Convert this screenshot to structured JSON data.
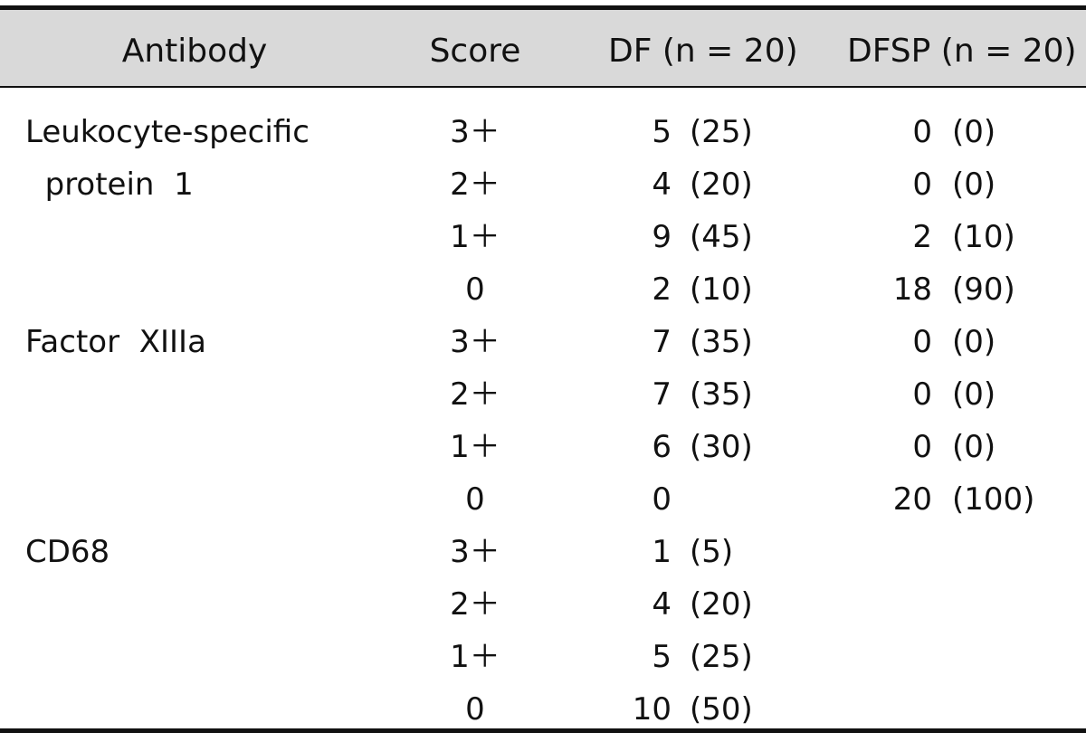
{
  "table": {
    "headers": {
      "antibody": "Antibody",
      "score": "Score",
      "df": "DF  (n = 20)",
      "dfsp": "DFSP  (n = 20)"
    },
    "rows": [
      {
        "antibody": "Leukocyte-specific",
        "score": "3＋",
        "df_n": "5",
        "df_p": "(25)",
        "dfsp_n": "0",
        "dfsp_p": "(0)"
      },
      {
        "antibody": "  protein  1",
        "score": "2＋",
        "df_n": "4",
        "df_p": "(20)",
        "dfsp_n": "0",
        "dfsp_p": "(0)"
      },
      {
        "antibody": "",
        "score": "1＋",
        "df_n": "9",
        "df_p": "(45)",
        "dfsp_n": "2",
        "dfsp_p": "(10)"
      },
      {
        "antibody": "",
        "score": "0",
        "df_n": "2",
        "df_p": "(10)",
        "dfsp_n": "18",
        "dfsp_p": "(90)"
      },
      {
        "antibody": "Factor  XIIIa",
        "score": "3＋",
        "df_n": "7",
        "df_p": "(35)",
        "dfsp_n": "0",
        "dfsp_p": "(0)"
      },
      {
        "antibody": "",
        "score": "2＋",
        "df_n": "7",
        "df_p": "(35)",
        "dfsp_n": "0",
        "dfsp_p": "(0)"
      },
      {
        "antibody": "",
        "score": "1＋",
        "df_n": "6",
        "df_p": "(30)",
        "dfsp_n": "0",
        "dfsp_p": "(0)"
      },
      {
        "antibody": "",
        "score": "0",
        "df_n": "0",
        "df_p": "",
        "dfsp_n": "20",
        "dfsp_p": "(100)"
      },
      {
        "antibody": "CD68",
        "score": "3＋",
        "df_n": "1",
        "df_p": "(5)",
        "dfsp_n": "",
        "dfsp_p": ""
      },
      {
        "antibody": "",
        "score": "2＋",
        "df_n": "4",
        "df_p": "(20)",
        "dfsp_n": "",
        "dfsp_p": ""
      },
      {
        "antibody": "",
        "score": "1＋",
        "df_n": "5",
        "df_p": "(25)",
        "dfsp_n": "",
        "dfsp_p": ""
      },
      {
        "antibody": "",
        "score": "0",
        "df_n": "10",
        "df_p": "(50)",
        "dfsp_n": "",
        "dfsp_p": ""
      }
    ]
  }
}
